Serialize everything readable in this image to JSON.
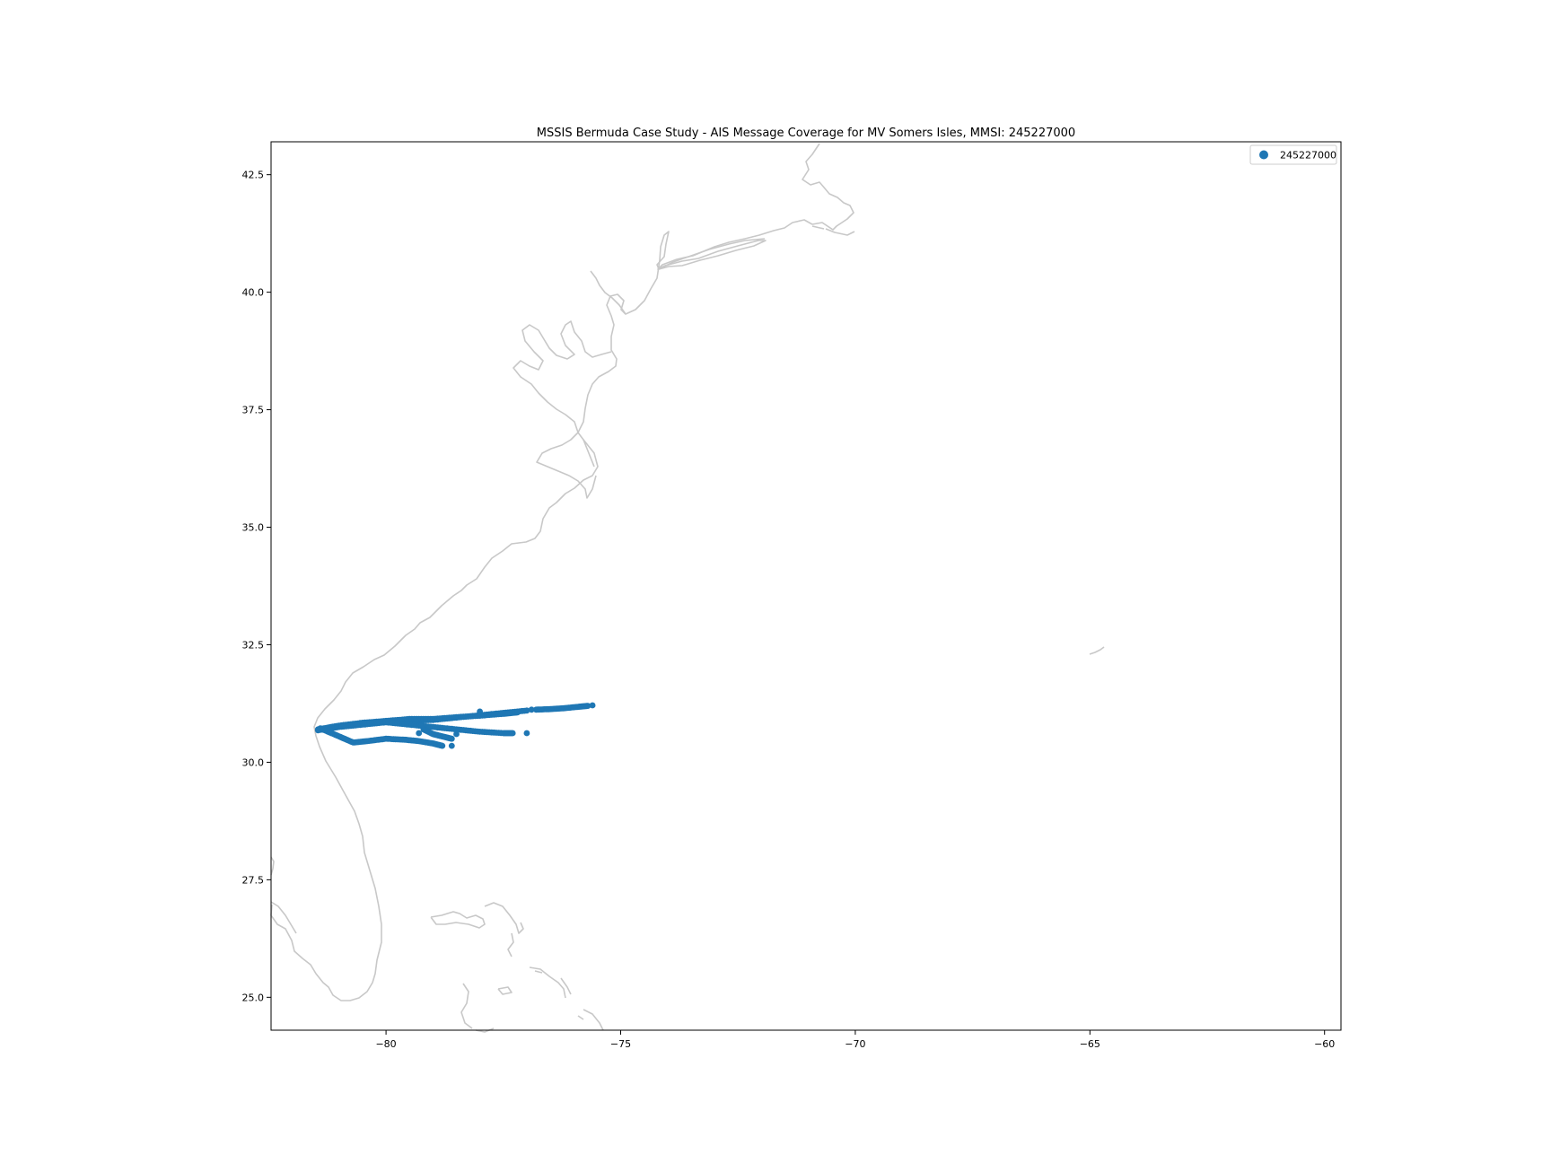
{
  "chart_data": {
    "type": "scatter",
    "title": "MSSIS Bermuda Case Study - AIS Message Coverage for MV Somers Isles, MMSI: 245227000",
    "xlabel": "",
    "ylabel": "",
    "xlim": [
      -82.45,
      -59.65
    ],
    "ylim": [
      24.3,
      43.2
    ],
    "grid": false,
    "legend_position": "top-right",
    "x_ticks": [
      -80,
      -75,
      -70,
      -65,
      -60
    ],
    "x_tick_labels": [
      "−80",
      "−75",
      "−70",
      "−65",
      "−60"
    ],
    "y_ticks": [
      25.0,
      27.5,
      30.0,
      32.5,
      35.0,
      37.5,
      40.0,
      42.5
    ],
    "y_tick_labels": [
      "25.0",
      "27.5",
      "30.0",
      "32.5",
      "35.0",
      "37.5",
      "40.0",
      "42.5"
    ],
    "coastline_color": "#c8c8c8",
    "series": [
      {
        "name": "245227000",
        "color": "#1f77b4",
        "tracks": [
          [
            [
              -81.45,
              30.68
            ],
            [
              -81.0,
              30.75
            ],
            [
              -80.5,
              30.8
            ],
            [
              -80.0,
              30.85
            ],
            [
              -79.5,
              30.88
            ],
            [
              -79.0,
              30.9
            ],
            [
              -78.5,
              30.95
            ],
            [
              -78.0,
              31.0
            ],
            [
              -77.5,
              31.05
            ],
            [
              -77.0,
              31.1
            ]
          ],
          [
            [
              -81.45,
              30.7
            ],
            [
              -81.0,
              30.78
            ],
            [
              -80.5,
              30.84
            ],
            [
              -80.0,
              30.88
            ],
            [
              -79.5,
              30.92
            ],
            [
              -79.0,
              30.92
            ],
            [
              -78.5,
              30.96
            ],
            [
              -78.0,
              30.99
            ],
            [
              -77.5,
              31.03
            ],
            [
              -77.2,
              31.06
            ]
          ],
          [
            [
              -80.0,
              30.85
            ],
            [
              -79.5,
              30.8
            ],
            [
              -79.0,
              30.75
            ],
            [
              -78.5,
              30.7
            ],
            [
              -78.0,
              30.65
            ],
            [
              -77.5,
              30.62
            ],
            [
              -77.3,
              30.62
            ]
          ],
          [
            [
              -81.4,
              30.72
            ],
            [
              -81.0,
              30.55
            ],
            [
              -80.7,
              30.42
            ],
            [
              -80.4,
              30.45
            ],
            [
              -80.0,
              30.5
            ],
            [
              -79.6,
              30.48
            ],
            [
              -79.3,
              30.45
            ],
            [
              -79.0,
              30.4
            ],
            [
              -78.8,
              30.35
            ]
          ],
          [
            [
              -79.2,
              30.7
            ],
            [
              -79.0,
              30.6
            ],
            [
              -78.8,
              30.55
            ],
            [
              -78.6,
              30.5
            ]
          ],
          [
            [
              -76.8,
              31.12
            ],
            [
              -76.5,
              31.13
            ],
            [
              -76.2,
              31.15
            ],
            [
              -75.9,
              31.18
            ],
            [
              -75.7,
              31.2
            ]
          ]
        ],
        "points": [
          [
            -78.0,
            31.08
          ],
          [
            -78.5,
            30.6
          ],
          [
            -78.6,
            30.35
          ],
          [
            -76.9,
            31.12
          ],
          [
            -75.6,
            31.21
          ],
          [
            -77.0,
            30.62
          ],
          [
            -79.3,
            30.62
          ]
        ]
      }
    ]
  }
}
